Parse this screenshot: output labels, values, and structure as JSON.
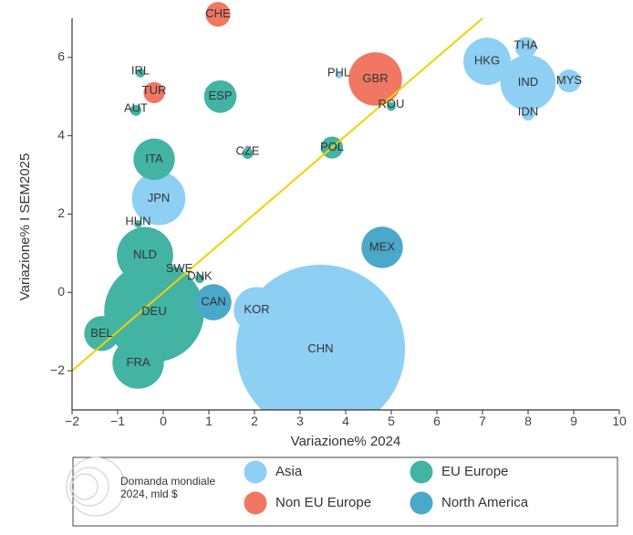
{
  "chart_data": {
    "type": "scatter",
    "xlabel": "Variazione% 2024",
    "ylabel": "Variazione% I SEM2025",
    "xlim": [
      -2,
      10
    ],
    "ylim": [
      -3,
      7
    ],
    "xticks": [
      -2,
      -1,
      0,
      1,
      2,
      3,
      4,
      5,
      6,
      7,
      8,
      9,
      10
    ],
    "yticks": [
      -2,
      0,
      2,
      4,
      6
    ],
    "grid": false,
    "reference_line": {
      "x": [
        -2,
        7
      ],
      "y": [
        -2,
        7
      ],
      "color": "#f2d100"
    },
    "groups": [
      {
        "name": "Asia",
        "color": "#8ecff4"
      },
      {
        "name": "Non EU Europe",
        "color": "#f07862"
      },
      {
        "name": "EU Europe",
        "color": "#43b4a3"
      },
      {
        "name": "North America",
        "color": "#4aa9c9"
      }
    ],
    "size_legend_label": "Domanda mondiale\n2024, mld $",
    "legend_position": "bottom",
    "points": [
      {
        "label": "CHN",
        "x": 3.45,
        "y": -1.45,
        "size": 700,
        "group": "Asia"
      },
      {
        "label": "DEU",
        "x": -0.2,
        "y": -0.5,
        "size": 245,
        "group": "EU Europe"
      },
      {
        "label": "GBR",
        "x": 4.65,
        "y": 5.45,
        "size": 70,
        "group": "Non EU Europe"
      },
      {
        "label": "IND",
        "x": 8.0,
        "y": 5.35,
        "size": 75,
        "group": "Asia"
      },
      {
        "label": "HKG",
        "x": 7.1,
        "y": 5.9,
        "size": 55,
        "group": "Asia"
      },
      {
        "label": "JPN",
        "x": -0.1,
        "y": 2.4,
        "size": 70,
        "group": "Asia"
      },
      {
        "label": "NLD",
        "x": -0.4,
        "y": 0.95,
        "size": 78,
        "group": "EU Europe"
      },
      {
        "label": "FRA",
        "x": -0.55,
        "y": -1.8,
        "size": 65,
        "group": "EU Europe"
      },
      {
        "label": "MEX",
        "x": 4.8,
        "y": 1.15,
        "size": 42,
        "group": "North America"
      },
      {
        "label": "KOR",
        "x": 2.05,
        "y": -0.45,
        "size": 52,
        "group": "Asia"
      },
      {
        "label": "ITA",
        "x": -0.2,
        "y": 3.4,
        "size": 42,
        "group": "EU Europe"
      },
      {
        "label": "CAN",
        "x": 1.1,
        "y": -0.25,
        "size": 32,
        "group": "North America"
      },
      {
        "label": "BEL",
        "x": -1.35,
        "y": -1.05,
        "size": 30,
        "group": "EU Europe"
      },
      {
        "label": "ESP",
        "x": 1.25,
        "y": 5.0,
        "size": 26,
        "group": "EU Europe"
      },
      {
        "label": "CHE",
        "x": 1.2,
        "y": 7.1,
        "size": 15,
        "group": "Non EU Europe"
      },
      {
        "label": "MYS",
        "x": 8.9,
        "y": 5.4,
        "size": 13,
        "group": "Asia"
      },
      {
        "label": "THA",
        "x": 7.95,
        "y": 6.25,
        "size": 11,
        "group": "Asia"
      },
      {
        "label": "POL",
        "x": 3.7,
        "y": 3.7,
        "size": 12,
        "group": "EU Europe"
      },
      {
        "label": "TUR",
        "x": -0.2,
        "y": 5.1,
        "size": 11,
        "group": "Non EU Europe"
      },
      {
        "label": "IDN",
        "x": 8.0,
        "y": 4.55,
        "size": 4,
        "group": "Asia"
      },
      {
        "label": "CZE",
        "x": 1.85,
        "y": 3.55,
        "size": 3,
        "group": "EU Europe"
      },
      {
        "label": "AUT",
        "x": -0.6,
        "y": 4.65,
        "size": 3,
        "group": "EU Europe"
      },
      {
        "label": "DNK",
        "x": 0.8,
        "y": 0.35,
        "size": 2,
        "group": "EU Europe"
      },
      {
        "label": "ROU",
        "x": 5.0,
        "y": 4.75,
        "size": 2,
        "group": "EU Europe"
      },
      {
        "label": "IRL",
        "x": -0.5,
        "y": 5.6,
        "size": 2,
        "group": "EU Europe"
      },
      {
        "label": "HUN",
        "x": -0.55,
        "y": 1.75,
        "size": 1.5,
        "group": "EU Europe"
      },
      {
        "label": "SWE",
        "x": 0.35,
        "y": 0.55,
        "size": 1.5,
        "group": "EU Europe"
      },
      {
        "label": "PHL",
        "x": 3.85,
        "y": 5.55,
        "size": 1.2,
        "group": "Asia"
      }
    ]
  }
}
